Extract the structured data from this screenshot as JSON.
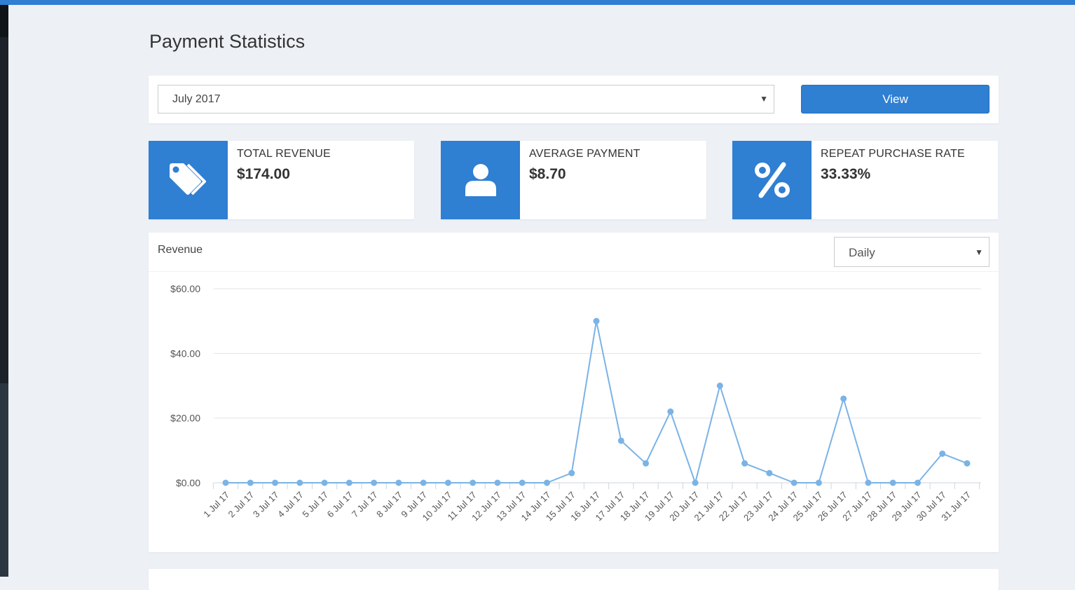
{
  "page": {
    "title": "Payment Statistics"
  },
  "filter": {
    "month_value": "July 2017",
    "view_label": "View"
  },
  "stats": [
    {
      "label": "TOTAL REVENUE",
      "value": "$174.00",
      "icon": "price-tags-icon"
    },
    {
      "label": "AVERAGE PAYMENT",
      "value": "$8.70",
      "icon": "user-icon"
    },
    {
      "label": "REPEAT PURCHASE RATE",
      "value": "33.33%",
      "icon": "percent-icon"
    }
  ],
  "colors": {
    "accent": "#2f7fd2",
    "line": "#7ab3e6",
    "background": "#edf1f6"
  },
  "revenue": {
    "title": "Revenue",
    "period_value": "Daily"
  },
  "chart_data": {
    "type": "line",
    "title": "",
    "xlabel": "",
    "ylabel": "",
    "ylim": [
      0,
      60
    ],
    "yticks": [
      "$0.00",
      "$20.00",
      "$40.00",
      "$60.00"
    ],
    "grid": true,
    "categories": [
      "1 Jul 17",
      "2 Jul 17",
      "3 Jul 17",
      "4 Jul 17",
      "5 Jul 17",
      "6 Jul 17",
      "7 Jul 17",
      "8 Jul 17",
      "9 Jul 17",
      "10 Jul 17",
      "11 Jul 17",
      "12 Jul 17",
      "13 Jul 17",
      "14 Jul 17",
      "15 Jul 17",
      "16 Jul 17",
      "17 Jul 17",
      "18 Jul 17",
      "19 Jul 17",
      "20 Jul 17",
      "21 Jul 17",
      "22 Jul 17",
      "23 Jul 17",
      "24 Jul 17",
      "25 Jul 17",
      "26 Jul 17",
      "27 Jul 17",
      "28 Jul 17",
      "29 Jul 17",
      "30 Jul 17",
      "31 Jul 17"
    ],
    "values": [
      0,
      0,
      0,
      0,
      0,
      0,
      0,
      0,
      0,
      0,
      0,
      0,
      0,
      0,
      3,
      50,
      13,
      6,
      22,
      0,
      30,
      6,
      3,
      0,
      0,
      26,
      0,
      0,
      0,
      9,
      6
    ]
  }
}
